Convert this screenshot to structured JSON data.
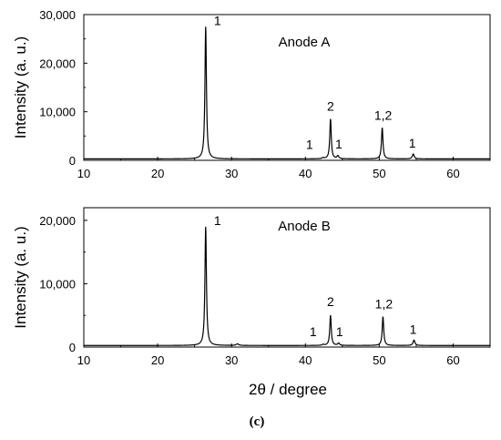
{
  "figure": {
    "caption": "(c)",
    "xlabel": "2θ / degree"
  },
  "chart_data": [
    {
      "type": "line",
      "title": "Anode A",
      "xlabel": "2θ / degree",
      "ylabel": "Intensity (a. u.)",
      "xlim": [
        10,
        65
      ],
      "ylim": [
        0,
        30000
      ],
      "xticks": [
        10,
        20,
        30,
        40,
        50,
        60
      ],
      "yticks": [
        0,
        10000,
        20000,
        30000
      ],
      "ytick_labels": [
        "0",
        "10,000",
        "20,000",
        "30,000"
      ],
      "baseline": 300,
      "peaks": [
        {
          "x": 26.5,
          "y": 27500,
          "width": 0.12,
          "label": "1"
        },
        {
          "x": 42.4,
          "y": 500,
          "width": 0.15,
          "label": "1"
        },
        {
          "x": 43.4,
          "y": 8500,
          "width": 0.12,
          "label": "2"
        },
        {
          "x": 44.4,
          "y": 900,
          "width": 0.15,
          "label": "1"
        },
        {
          "x": 50.4,
          "y": 6700,
          "width": 0.12,
          "label": "1,2"
        },
        {
          "x": 54.6,
          "y": 1300,
          "width": 0.15,
          "label": "1"
        }
      ]
    },
    {
      "type": "line",
      "title": "Anode B",
      "xlabel": "2θ / degree",
      "ylabel": "Intensity (a. u.)",
      "xlim": [
        10,
        65
      ],
      "ylim": [
        0,
        22000
      ],
      "xticks": [
        10,
        20,
        30,
        40,
        50,
        60
      ],
      "yticks": [
        0,
        10000,
        20000
      ],
      "ytick_labels": [
        "0",
        "10,000",
        "20,000"
      ],
      "baseline": 250,
      "peaks": [
        {
          "x": 26.5,
          "y": 19000,
          "width": 0.12,
          "label": "1"
        },
        {
          "x": 30.8,
          "y": 500,
          "width": 0.2,
          "label": ""
        },
        {
          "x": 42.4,
          "y": 400,
          "width": 0.15,
          "label": "1"
        },
        {
          "x": 43.4,
          "y": 5000,
          "width": 0.12,
          "label": "2"
        },
        {
          "x": 44.5,
          "y": 600,
          "width": 0.15,
          "label": "1"
        },
        {
          "x": 50.5,
          "y": 4800,
          "width": 0.12,
          "label": "1,2"
        },
        {
          "x": 54.7,
          "y": 1100,
          "width": 0.15,
          "label": "1"
        }
      ]
    }
  ]
}
